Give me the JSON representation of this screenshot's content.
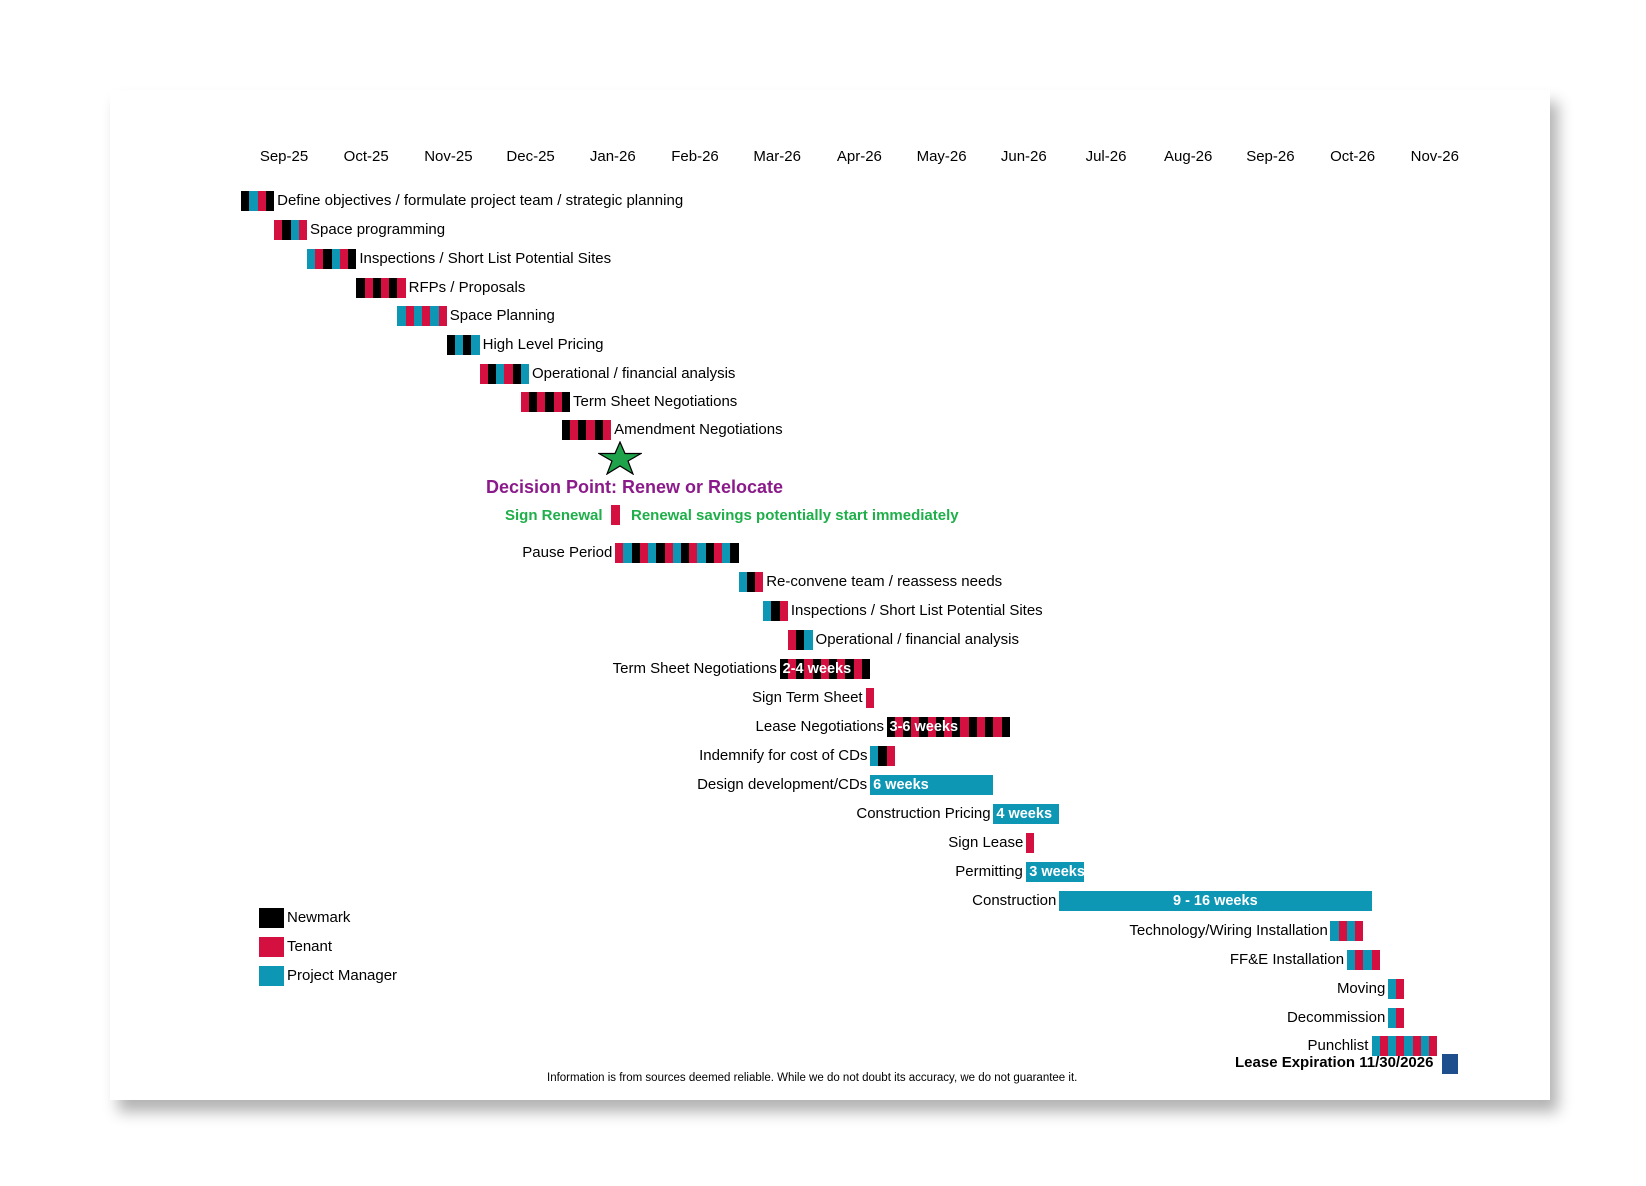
{
  "colors": {
    "newmark": "#000000",
    "tenant": "#D3103F",
    "project_manager": "#0E96B5",
    "decision": "#8B1A8B",
    "green": "#1FAF4A",
    "lease_square": "#1F4E8C",
    "star": "#1FA34A"
  },
  "chart_data": {
    "type": "gantt",
    "title": "",
    "months": [
      "Sep-25",
      "Oct-25",
      "Nov-25",
      "Dec-25",
      "Jan-26",
      "Feb-26",
      "Mar-26",
      "Apr-26",
      "May-26",
      "Jun-26",
      "Jul-26",
      "Aug-26",
      "Sep-26",
      "Oct-26",
      "Nov-26"
    ],
    "legend": [
      {
        "key": "newmark",
        "label": "Newmark"
      },
      {
        "key": "tenant",
        "label": "Tenant"
      },
      {
        "key": "project_manager",
        "label": "Project Manager"
      }
    ],
    "tasks": [
      {
        "label": "Define objectives / formulate project team / strategic planning",
        "start_month": -0.52,
        "duration_months": 0.4,
        "parties": [
          "newmark",
          "project_manager",
          "tenant"
        ],
        "label_side": "right"
      },
      {
        "label": "Space programming",
        "start_month": -0.12,
        "duration_months": 0.4,
        "parties": [
          "tenant",
          "newmark",
          "project_manager"
        ],
        "label_side": "right"
      },
      {
        "label": "Inspections / Short List Potential Sites",
        "start_month": 0.28,
        "duration_months": 0.6,
        "parties": [
          "project_manager",
          "tenant",
          "newmark"
        ],
        "label_side": "right"
      },
      {
        "label": "RFPs / Proposals",
        "start_month": 0.88,
        "duration_months": 0.6,
        "parties": [
          "newmark",
          "tenant"
        ],
        "label_side": "right"
      },
      {
        "label": "Space Planning",
        "start_month": 1.38,
        "duration_months": 0.6,
        "parties": [
          "project_manager",
          "tenant"
        ],
        "label_side": "right"
      },
      {
        "label": "High Level Pricing",
        "start_month": 1.98,
        "duration_months": 0.4,
        "parties": [
          "newmark",
          "project_manager"
        ],
        "label_side": "right"
      },
      {
        "label": "Operational / financial analysis",
        "start_month": 2.38,
        "duration_months": 0.6,
        "parties": [
          "tenant",
          "newmark",
          "project_manager"
        ],
        "label_side": "right"
      },
      {
        "label": "Term Sheet Negotiations",
        "start_month": 2.88,
        "duration_months": 0.6,
        "parties": [
          "tenant",
          "newmark"
        ],
        "label_side": "right"
      },
      {
        "label": "Amendment Negotiations",
        "start_month": 3.38,
        "duration_months": 0.6,
        "parties": [
          "newmark",
          "tenant"
        ],
        "label_side": "right"
      },
      {
        "label": "Pause Period",
        "start_month": 4.03,
        "duration_months": 1.5,
        "parties": [
          "tenant",
          "project_manager",
          "newmark"
        ],
        "label_side": "left"
      },
      {
        "label": "Re-convene team / reassess needs",
        "start_month": 5.53,
        "duration_months": 0.3,
        "parties": [
          "project_manager",
          "newmark",
          "tenant"
        ],
        "label_side": "right"
      },
      {
        "label": "Inspections / Short List Potential Sites",
        "start_month": 5.83,
        "duration_months": 0.3,
        "parties": [
          "project_manager",
          "newmark",
          "tenant"
        ],
        "label_side": "right"
      },
      {
        "label": "Operational / financial analysis",
        "start_month": 6.13,
        "duration_months": 0.3,
        "parties": [
          "tenant",
          "newmark",
          "project_manager"
        ],
        "label_side": "right"
      },
      {
        "label": "Term Sheet Negotiations",
        "start_month": 6.03,
        "duration_months": 1.1,
        "parties": [
          "newmark",
          "tenant"
        ],
        "label_side": "left",
        "bar_text": "2-4 weeks"
      },
      {
        "label": "Sign Term Sheet",
        "start_month": 7.08,
        "duration_months": 0.1,
        "parties": [
          "tenant"
        ],
        "label_side": "left"
      },
      {
        "label": "Lease Negotiations",
        "start_month": 7.33,
        "duration_months": 1.5,
        "parties": [
          "newmark",
          "tenant"
        ],
        "label_side": "left",
        "bar_text": "3-6 weeks"
      },
      {
        "label": "Indemnify for cost of CDs",
        "start_month": 7.13,
        "duration_months": 0.3,
        "parties": [
          "project_manager",
          "newmark",
          "tenant"
        ],
        "label_side": "left"
      },
      {
        "label": "Design development/CDs",
        "start_month": 7.13,
        "duration_months": 1.5,
        "parties": [
          "project_manager"
        ],
        "label_side": "left",
        "bar_text": "6 weeks"
      },
      {
        "label": "Construction Pricing",
        "start_month": 8.63,
        "duration_months": 0.8,
        "parties": [
          "project_manager"
        ],
        "label_side": "left",
        "bar_text": "4 weeks"
      },
      {
        "label": "Sign Lease",
        "start_month": 9.03,
        "duration_months": 0.1,
        "parties": [
          "tenant"
        ],
        "label_side": "left"
      },
      {
        "label": "Permitting",
        "start_month": 9.03,
        "duration_months": 0.7,
        "parties": [
          "project_manager"
        ],
        "label_side": "left",
        "bar_text": "3 weeks"
      },
      {
        "label": "Construction",
        "start_month": 9.43,
        "duration_months": 3.8,
        "parties": [
          "project_manager"
        ],
        "label_side": "left",
        "bar_text": "9 - 16  weeks",
        "bar_text_center": true
      },
      {
        "label": "Technology/Wiring Installation",
        "start_month": 12.73,
        "duration_months": 0.4,
        "parties": [
          "project_manager",
          "tenant"
        ],
        "label_side": "left"
      },
      {
        "label": "FF&E Installation",
        "start_month": 12.93,
        "duration_months": 0.4,
        "parties": [
          "project_manager",
          "tenant"
        ],
        "label_side": "left"
      },
      {
        "label": "Moving",
        "start_month": 13.43,
        "duration_months": 0.2,
        "parties": [
          "project_manager",
          "tenant"
        ],
        "label_side": "left"
      },
      {
        "label": "Decommission",
        "start_month": 13.43,
        "duration_months": 0.2,
        "parties": [
          "project_manager",
          "tenant"
        ],
        "label_side": "left"
      },
      {
        "label": "Punchlist",
        "start_month": 13.23,
        "duration_months": 0.8,
        "parties": [
          "project_manager",
          "tenant"
        ],
        "label_side": "left"
      }
    ],
    "decision_point": {
      "label": "Decision Point: Renew or Relocate",
      "sign_renewal": "Sign Renewal",
      "renewal_note": "Renewal savings potentially start immediately"
    },
    "lease_expiration": "Lease Expiration 11/30/2026",
    "footnote": "Information is from sources deemed reliable. While we do not doubt its accuracy, we do not guarantee it."
  }
}
